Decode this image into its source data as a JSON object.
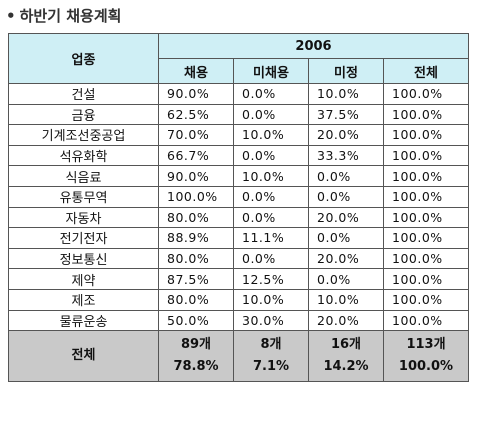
{
  "caption": {
    "bullet": "•",
    "text": "하반기 채용계획"
  },
  "table": {
    "col_industry": "업종",
    "year": "2006",
    "col_hire": "채용",
    "col_nohire": "미채용",
    "col_undecided": "미정",
    "col_total": "전체",
    "rows": [
      {
        "industry": "건설",
        "hire": "90.0%",
        "nohire": "0.0%",
        "undecided": "10.0%",
        "total": "100.0%"
      },
      {
        "industry": "금융",
        "hire": "62.5%",
        "nohire": "0.0%",
        "undecided": "37.5%",
        "total": "100.0%"
      },
      {
        "industry": "기계조선중공업",
        "hire": "70.0%",
        "nohire": "10.0%",
        "undecided": "20.0%",
        "total": "100.0%"
      },
      {
        "industry": "석유화학",
        "hire": "66.7%",
        "nohire": "0.0%",
        "undecided": "33.3%",
        "total": "100.0%"
      },
      {
        "industry": "식음료",
        "hire": "90.0%",
        "nohire": "10.0%",
        "undecided": "0.0%",
        "total": "100.0%"
      },
      {
        "industry": "유통무역",
        "hire": "100.0%",
        "nohire": "0.0%",
        "undecided": "0.0%",
        "total": "100.0%"
      },
      {
        "industry": "자동차",
        "hire": "80.0%",
        "nohire": "0.0%",
        "undecided": "20.0%",
        "total": "100.0%"
      },
      {
        "industry": "전기전자",
        "hire": "88.9%",
        "nohire": "11.1%",
        "undecided": "0.0%",
        "total": "100.0%"
      },
      {
        "industry": "정보통신",
        "hire": "80.0%",
        "nohire": "0.0%",
        "undecided": "20.0%",
        "total": "100.0%"
      },
      {
        "industry": "제약",
        "hire": "87.5%",
        "nohire": "12.5%",
        "undecided": "0.0%",
        "total": "100.0%"
      },
      {
        "industry": "제조",
        "hire": "80.0%",
        "nohire": "10.0%",
        "undecided": "10.0%",
        "total": "100.0%"
      },
      {
        "industry": "물류운송",
        "hire": "50.0%",
        "nohire": "30.0%",
        "undecided": "20.0%",
        "total": "100.0%"
      }
    ],
    "total_row": {
      "label": "전체",
      "hire_count": "89개",
      "hire_pct": "78.8%",
      "nohire_count": "8개",
      "nohire_pct": "7.1%",
      "undecided_count": "16개",
      "undecided_pct": "14.2%",
      "total_count": "113개",
      "total_pct": "100.0%"
    }
  },
  "colors": {
    "header_bg": "#cfeff5",
    "total_bg": "#c9c9c9",
    "border": "#555555"
  }
}
